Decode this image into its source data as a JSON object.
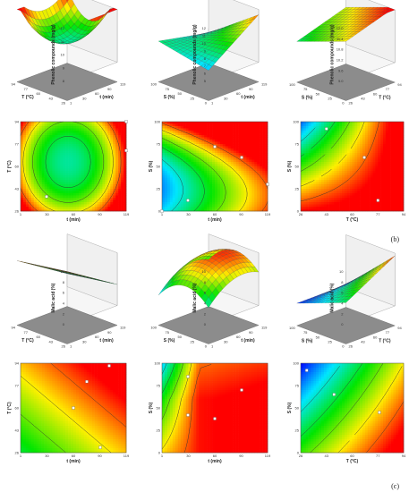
{
  "section_labels": {
    "b": "(b)",
    "c": "(c)"
  },
  "chart_data": [
    {
      "type": "surface",
      "section": "b",
      "row": 1,
      "col": 1,
      "zlabel": "Phenolic compounds (mg/g)",
      "xlabel": "T (°C)",
      "ylabel": "t (min)",
      "xticks": [
        "94",
        "77",
        "60",
        "43",
        "26"
      ],
      "yticks": [
        "1",
        "30",
        "60",
        "90",
        "119"
      ],
      "zticks": [
        "8",
        "9",
        "10",
        "11",
        "12"
      ],
      "zlim": [
        8,
        12
      ],
      "surface_shape": "bowl"
    },
    {
      "type": "surface",
      "section": "b",
      "row": 1,
      "col": 2,
      "zlabel": "Phenolic compounds (mg/g)",
      "xlabel": "S (%)",
      "ylabel": "t (min)",
      "xticks": [
        "100",
        "75",
        "50",
        "25",
        "0"
      ],
      "yticks": [
        "1",
        "30",
        "60",
        "90",
        "119"
      ],
      "zticks": [
        "5",
        "6",
        "7",
        "8",
        "9",
        "10",
        "11",
        "12"
      ],
      "zlim": [
        5,
        12
      ],
      "surface_shape": "corner_high"
    },
    {
      "type": "surface",
      "section": "b",
      "row": 1,
      "col": 3,
      "zlabel": "Phenolic compounds (mg/g)",
      "xlabel": "S (%)",
      "ylabel": "T (°C)",
      "xticks": [
        "100",
        "75",
        "50",
        "25",
        "0"
      ],
      "yticks": [
        "26",
        "43",
        "60",
        "77",
        "94"
      ],
      "zticks": [
        "9.0",
        "9.6",
        "10.2",
        "10.8",
        "11.4",
        "12.0"
      ],
      "zlim": [
        9,
        12
      ],
      "surface_shape": "ramp"
    },
    {
      "type": "contour",
      "section": "b",
      "row": 2,
      "col": 1,
      "xlabel": "t (min)",
      "ylabel": "T (°C)",
      "xticks": [
        "1",
        "30",
        "60",
        "90",
        "119"
      ],
      "yticks": [
        "26",
        "43",
        "60",
        "77",
        "94"
      ],
      "xlim": [
        1,
        119
      ],
      "ylim": [
        26,
        94
      ],
      "field": "bowl",
      "points": [
        [
          30,
          37
        ],
        [
          119,
          72
        ],
        [
          119,
          94
        ]
      ]
    },
    {
      "type": "contour",
      "section": "b",
      "row": 2,
      "col": 2,
      "xlabel": "t (min)",
      "ylabel": "S (%)",
      "xticks": [
        "1",
        "30",
        "60",
        "90",
        "119"
      ],
      "yticks": [
        "0",
        "25",
        "50",
        "75",
        "100"
      ],
      "xlim": [
        1,
        119
      ],
      "ylim": [
        0,
        100
      ],
      "field": "phen_ts",
      "points": [
        [
          30,
          12
        ],
        [
          60,
          72
        ],
        [
          90,
          60
        ],
        [
          119,
          30
        ],
        [
          1,
          0
        ]
      ]
    },
    {
      "type": "contour",
      "section": "b",
      "row": 2,
      "col": 3,
      "xlabel": "T (°C)",
      "ylabel": "S (%)",
      "xticks": [
        "26",
        "43",
        "60",
        "77",
        "94"
      ],
      "yticks": [
        "0",
        "25",
        "50",
        "75",
        "100"
      ],
      "xlim": [
        26,
        94
      ],
      "ylim": [
        0,
        100
      ],
      "field": "phen_tt",
      "points": [
        [
          43,
          92
        ],
        [
          68,
          60
        ],
        [
          77,
          12
        ]
      ]
    },
    {
      "type": "surface",
      "section": "c",
      "row": 1,
      "col": 1,
      "zlabel": "Malic acid (%)",
      "xlabel": "T (°C)",
      "ylabel": "t (min)",
      "xticks": [
        "94",
        "77",
        "60",
        "43",
        "26"
      ],
      "yticks": [
        "1",
        "30",
        "60",
        "90",
        "119"
      ],
      "zticks": [
        "0",
        "2",
        "4",
        "6",
        "8",
        "10"
      ],
      "zlim": [
        0,
        10
      ],
      "surface_shape": "tilt"
    },
    {
      "type": "surface",
      "section": "c",
      "row": 1,
      "col": 2,
      "zlabel": "Malic acid (%)",
      "xlabel": "S (%)",
      "ylabel": "t (min)",
      "xticks": [
        "100",
        "75",
        "50",
        "25",
        "0"
      ],
      "yticks": [
        "1",
        "30",
        "60",
        "90",
        "119"
      ],
      "zticks": [
        "0",
        "2",
        "4",
        "6",
        "8",
        "10"
      ],
      "zlim": [
        0,
        10
      ],
      "surface_shape": "dome"
    },
    {
      "type": "surface",
      "section": "c",
      "row": 1,
      "col": 3,
      "zlabel": "Malic acid (%)",
      "xlabel": "S (%)",
      "ylabel": "T (°C)",
      "xticks": [
        "100",
        "75",
        "50",
        "25",
        "0"
      ],
      "yticks": [
        "26",
        "43",
        "60",
        "77",
        "94"
      ],
      "zticks": [
        "0",
        "2",
        "4",
        "6",
        "8",
        "10"
      ],
      "zlim": [
        0,
        10
      ],
      "surface_shape": "steep"
    },
    {
      "type": "contour",
      "section": "c",
      "row": 2,
      "col": 1,
      "xlabel": "t (min)",
      "ylabel": "T (°C)",
      "xticks": [
        "1",
        "30",
        "60",
        "90",
        "119"
      ],
      "yticks": [
        "26",
        "43",
        "60",
        "77",
        "94"
      ],
      "xlim": [
        1,
        119
      ],
      "ylim": [
        26,
        94
      ],
      "field": "malic_t",
      "points": [
        [
          60,
          60
        ],
        [
          90,
          30
        ],
        [
          75,
          80
        ],
        [
          100,
          92
        ]
      ]
    },
    {
      "type": "contour",
      "section": "c",
      "row": 2,
      "col": 2,
      "xlabel": "t (min)",
      "ylabel": "S (%)",
      "xticks": [
        "1",
        "30",
        "60",
        "90",
        "119"
      ],
      "yticks": [
        "0",
        "25",
        "50",
        "75",
        "100"
      ],
      "xlim": [
        1,
        119
      ],
      "ylim": [
        0,
        100
      ],
      "field": "malic_ts",
      "points": [
        [
          30,
          42
        ],
        [
          60,
          38
        ],
        [
          90,
          70
        ],
        [
          30,
          85
        ]
      ]
    },
    {
      "type": "contour",
      "section": "c",
      "row": 2,
      "col": 3,
      "xlabel": "T (°C)",
      "ylabel": "S (%)",
      "xticks": [
        "26",
        "43",
        "60",
        "77",
        "94"
      ],
      "yticks": [
        "0",
        "25",
        "50",
        "75",
        "100"
      ],
      "xlim": [
        26,
        94
      ],
      "ylim": [
        0,
        100
      ],
      "field": "malic_tt",
      "points": [
        [
          30,
          92
        ],
        [
          48,
          65
        ],
        [
          78,
          45
        ]
      ]
    }
  ]
}
